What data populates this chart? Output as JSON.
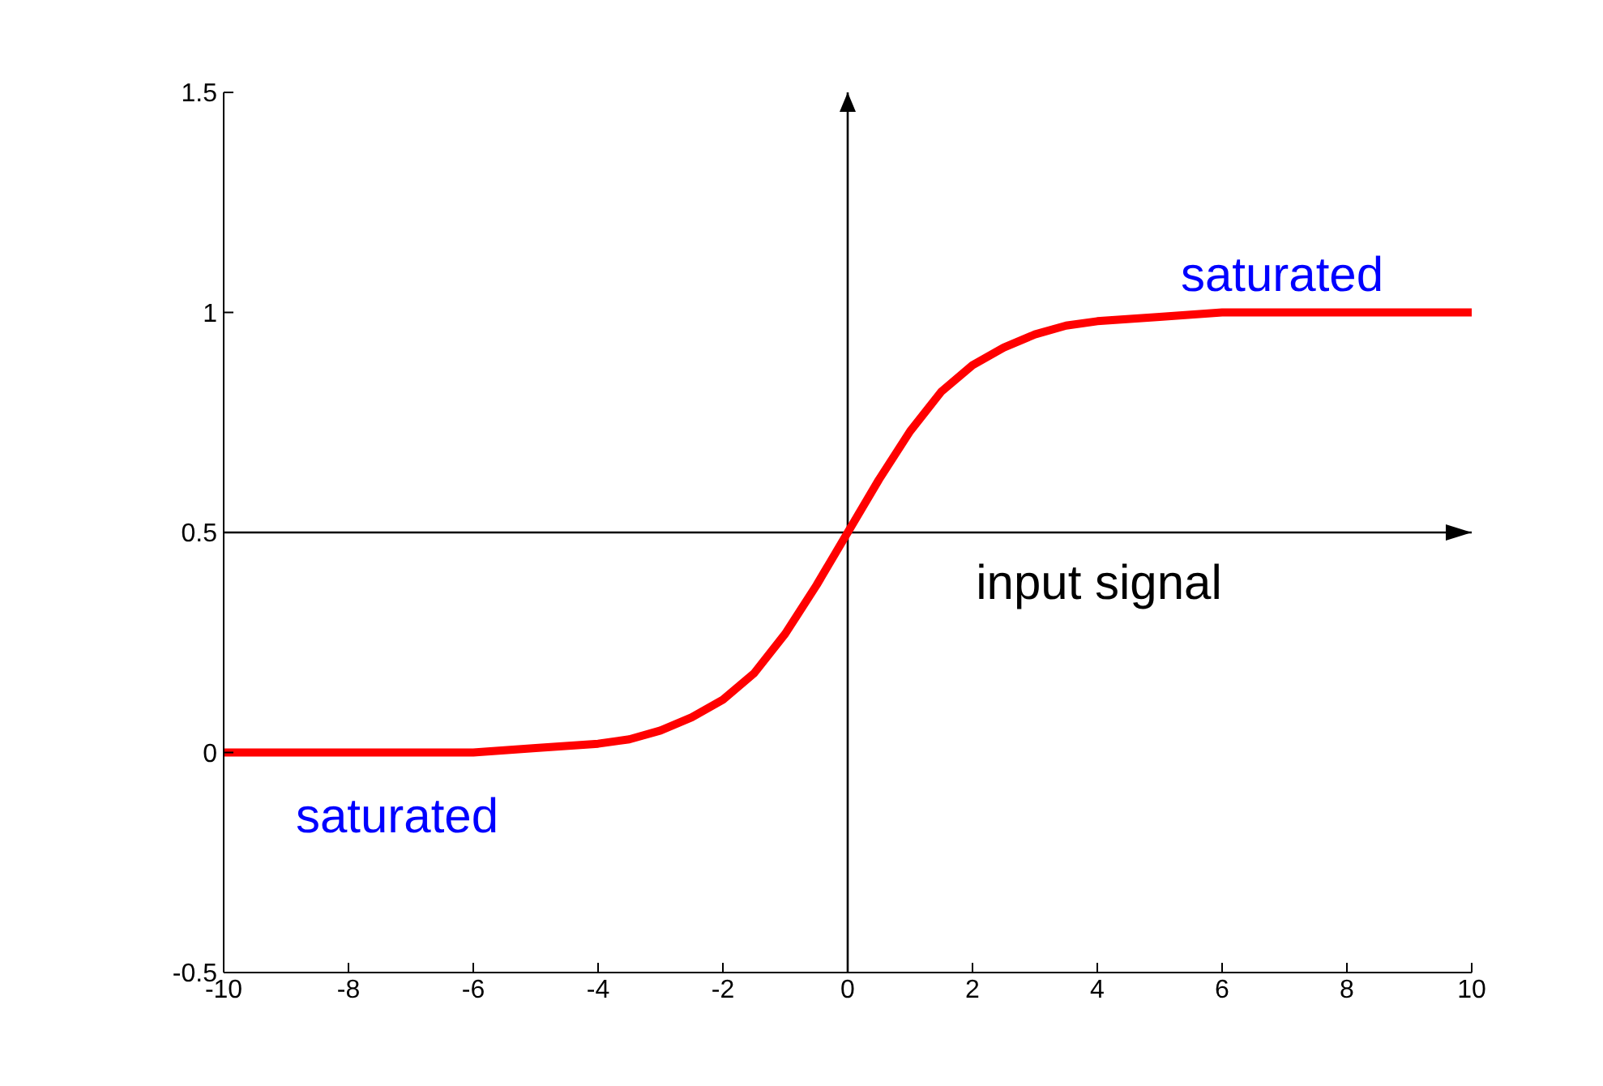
{
  "chart_data": {
    "type": "line",
    "x": [
      -10,
      -9,
      -8,
      -7,
      -6,
      -5,
      -4,
      -3.5,
      -3,
      -2.5,
      -2,
      -1.5,
      -1,
      -0.5,
      0,
      0.5,
      1,
      1.5,
      2,
      2.5,
      3,
      3.5,
      4,
      5,
      6,
      7,
      8,
      9,
      10
    ],
    "series": [
      {
        "color": "#ff0000",
        "values": [
          0,
          0,
          0,
          0,
          0,
          0.01,
          0.02,
          0.03,
          0.05,
          0.08,
          0.12,
          0.18,
          0.27,
          0.38,
          0.5,
          0.62,
          0.73,
          0.82,
          0.88,
          0.92,
          0.95,
          0.97,
          0.98,
          0.99,
          1,
          1,
          1,
          1,
          1
        ]
      }
    ],
    "xlim": [
      -10,
      10
    ],
    "xticks": [
      -10,
      -8,
      -6,
      -4,
      -2,
      0,
      2,
      4,
      6,
      8,
      10
    ],
    "ylim": [
      -0.5,
      1.5
    ],
    "yticks": [
      -0.5,
      0,
      0.5,
      1,
      1.5
    ],
    "ref_lines": [
      {
        "axis": "y",
        "value": 0.5
      },
      {
        "axis": "x",
        "value": 0
      }
    ],
    "annotations": [
      "saturated",
      "saturated",
      "input signal"
    ]
  }
}
